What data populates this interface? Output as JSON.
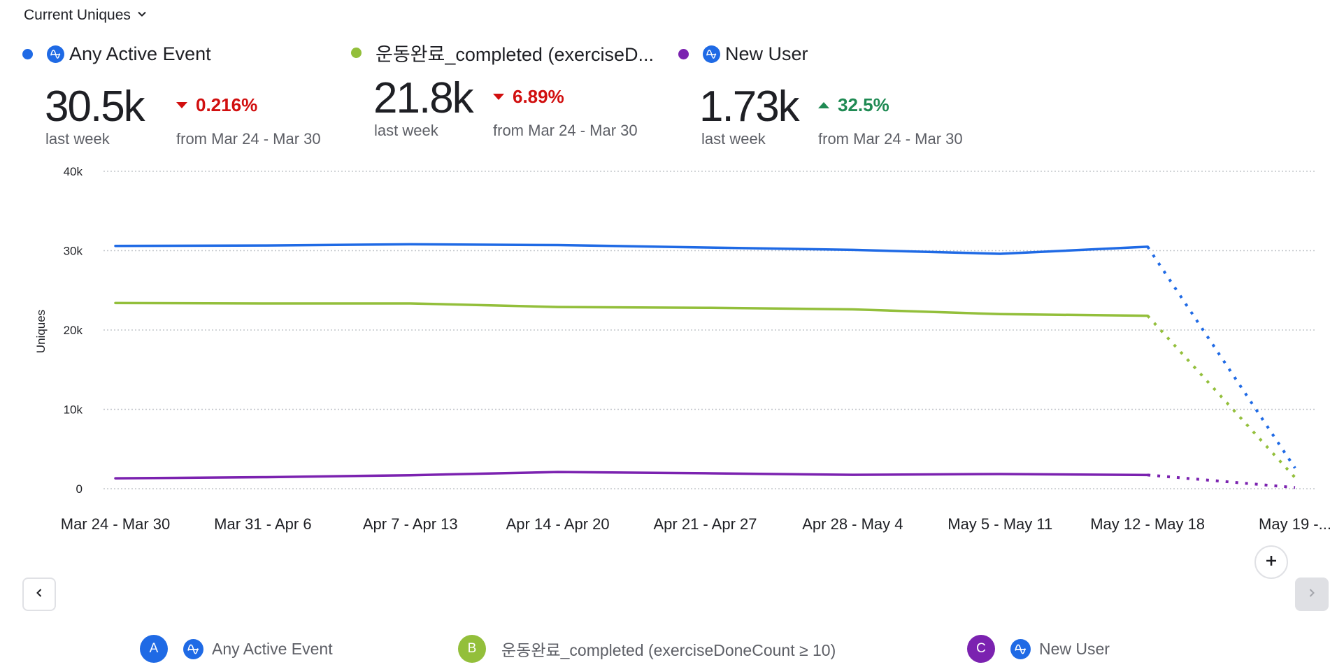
{
  "metric_selector": {
    "label": "Current Uniques",
    "icon": "chevron-down-icon"
  },
  "kpis": [
    {
      "id": "A",
      "name": "Any Active Event",
      "color": "#1f6ae5",
      "icon": "amplitude-icon",
      "value": "30.5k",
      "period": "last week",
      "change": "0.216%",
      "direction": "down",
      "change_color": "#d10f0f",
      "compare": "from Mar 24 - Mar 30"
    },
    {
      "id": "B",
      "name": "운동완료_completed (exerciseD...",
      "color": "#93bf3b",
      "icon": "",
      "value": "21.8k",
      "period": "last week",
      "change": "6.89%",
      "direction": "down",
      "change_color": "#d10f0f",
      "compare": "from Mar 24 - Mar 30"
    },
    {
      "id": "C",
      "name": "New User",
      "color": "#7b22b0",
      "icon": "amplitude-icon",
      "value": "1.73k",
      "period": "last week",
      "change": "32.5%",
      "direction": "up",
      "change_color": "#1f8a53",
      "compare": "from Mar 24 - Mar 30"
    }
  ],
  "chart_data": {
    "type": "line",
    "title": "",
    "xlabel": "",
    "ylabel": "Uniques",
    "ylim": [
      0,
      40000
    ],
    "yticks": [
      0,
      10000,
      20000,
      30000,
      40000
    ],
    "ytick_labels": [
      "0",
      "10k",
      "20k",
      "30k",
      "40k"
    ],
    "grid": true,
    "categories": [
      "Mar 24 - Mar 30",
      "Mar 31 - Apr 6",
      "Apr 7 - Apr 13",
      "Apr 14 - Apr 20",
      "Apr 21 - Apr 27",
      "Apr 28 - May 4",
      "May 5 - May 11",
      "May 12 - May 18",
      "May 19 -..."
    ],
    "incomplete_last_point": true,
    "series": [
      {
        "name": "Any Active Event",
        "color": "#1f6ae5",
        "values": [
          30600,
          30650,
          30800,
          30700,
          30400,
          30100,
          29600,
          30500,
          2600
        ]
      },
      {
        "name": "운동완료_completed (exerciseDoneCount ≥ 10)",
        "color": "#93bf3b",
        "values": [
          23400,
          23350,
          23350,
          22900,
          22800,
          22600,
          22000,
          21800,
          1400
        ]
      },
      {
        "name": "New User",
        "color": "#7b22b0",
        "values": [
          1310,
          1450,
          1700,
          2100,
          1950,
          1750,
          1850,
          1730,
          150
        ]
      }
    ]
  },
  "legend": [
    {
      "badge": "A",
      "color": "#1f6ae5",
      "icon": "amplitude-icon",
      "label": "Any Active Event"
    },
    {
      "badge": "B",
      "color": "#93bf3b",
      "icon": "",
      "label": "운동완료_completed (exerciseDoneCount ≥ 10)"
    },
    {
      "badge": "C",
      "color": "#7b22b0",
      "icon": "amplitude-icon",
      "label": "New User"
    }
  ],
  "controls": {
    "prev": "chevron-left-icon",
    "next": "chevron-right-icon",
    "add": "plus-icon"
  }
}
